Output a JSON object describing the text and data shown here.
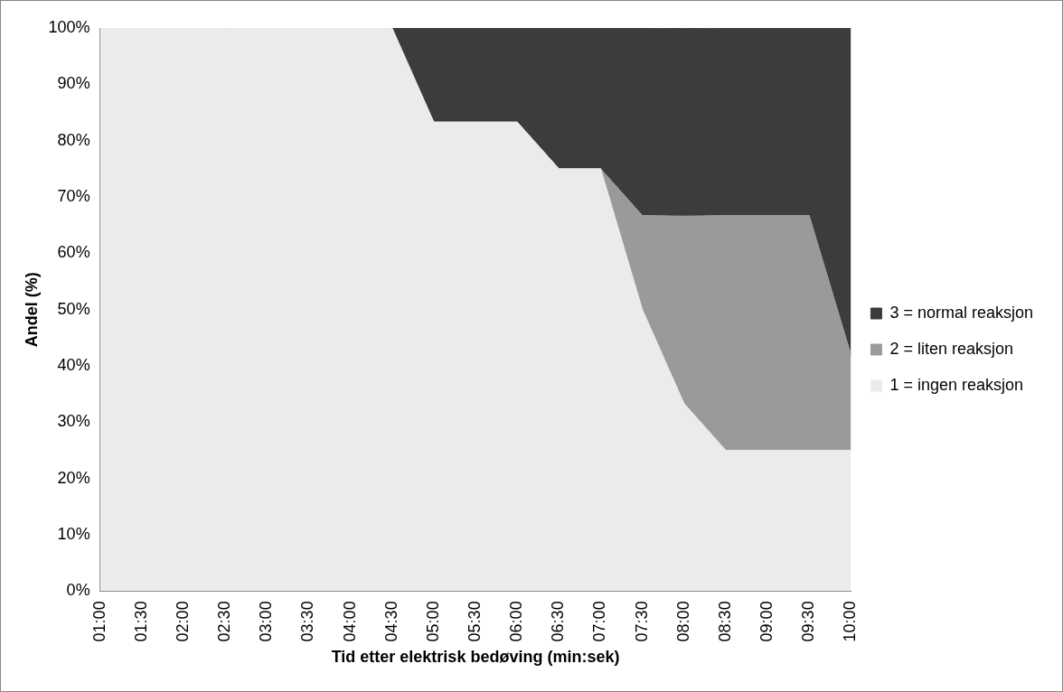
{
  "chart_data": {
    "type": "area",
    "stacked": true,
    "xlabel": "Tid etter elektrisk bedøving (min:sek)",
    "ylabel": "Andel (%)",
    "categories": [
      "01:00",
      "01:30",
      "02:00",
      "02:30",
      "03:00",
      "03:30",
      "04:00",
      "04:30",
      "05:00",
      "05:30",
      "06:00",
      "06:30",
      "07:00",
      "07:30",
      "08:00",
      "08:30",
      "09:00",
      "09:30",
      "10:00"
    ],
    "series": [
      {
        "name": "1 = ingen reaksjon",
        "color": "#ebebeb",
        "values": [
          100,
          100,
          100,
          100,
          100,
          100,
          100,
          100,
          83.3,
          83.3,
          83.3,
          75,
          75,
          50,
          33.3,
          25,
          25,
          25,
          25
        ]
      },
      {
        "name": "2 = liten reaksjon",
        "color": "#9a9a9a",
        "values": [
          0,
          0,
          0,
          0,
          0,
          0,
          0,
          0,
          0,
          0,
          0,
          0,
          0,
          16.7,
          33.3,
          41.7,
          41.7,
          41.7,
          17
        ]
      },
      {
        "name": "3 = normal reaksjon",
        "color": "#3c3c3c",
        "values": [
          0,
          0,
          0,
          0,
          0,
          0,
          0,
          0,
          16.7,
          16.7,
          16.7,
          25,
          25,
          33.3,
          33.3,
          33.3,
          33.3,
          33.3,
          58
        ]
      }
    ],
    "ylim": [
      0,
      100
    ],
    "yticks": [
      {
        "value": 0,
        "label": "0%"
      },
      {
        "value": 10,
        "label": "10%"
      },
      {
        "value": 20,
        "label": "20%"
      },
      {
        "value": 30,
        "label": "30%"
      },
      {
        "value": 40,
        "label": "40%"
      },
      {
        "value": 50,
        "label": "50%"
      },
      {
        "value": 60,
        "label": "60%"
      },
      {
        "value": 70,
        "label": "70%"
      },
      {
        "value": 80,
        "label": "80%"
      },
      {
        "value": 90,
        "label": "90%"
      },
      {
        "value": 100,
        "label": "100%"
      }
    ],
    "legend": "right",
    "grid": false
  }
}
